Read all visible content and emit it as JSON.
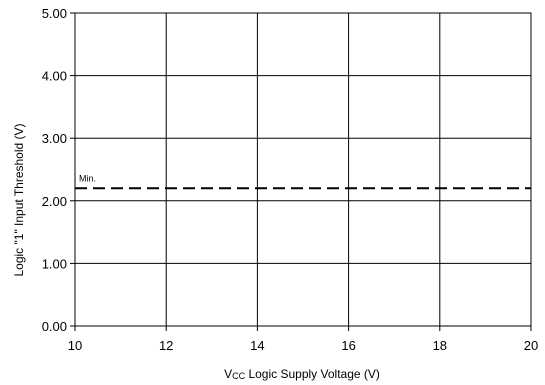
{
  "chart_data": {
    "type": "line",
    "title": "",
    "xlabel": "V CC Logic Supply Voltage (V)",
    "xlabel_main": "V",
    "xlabel_sub": "CC",
    "xlabel_rest": " Logic Supply Voltage (V)",
    "ylabel": "Logic \"1\" Input Threshold (V)",
    "xlim": [
      10,
      20
    ],
    "ylim": [
      0,
      5
    ],
    "x_ticks": [
      10,
      12,
      14,
      16,
      18,
      20
    ],
    "x_tick_labels": [
      "10",
      "12",
      "14",
      "16",
      "18",
      "20"
    ],
    "y_ticks": [
      0,
      1,
      2,
      3,
      4,
      5
    ],
    "y_tick_labels": [
      "0.00",
      "1.00",
      "2.00",
      "3.00",
      "4.00",
      "5.00"
    ],
    "grid": true,
    "series": [
      {
        "name": "",
        "label": "Min.",
        "x": [
          10,
          20
        ],
        "y": [
          2.2,
          2.2
        ],
        "style": "dashed"
      }
    ]
  }
}
